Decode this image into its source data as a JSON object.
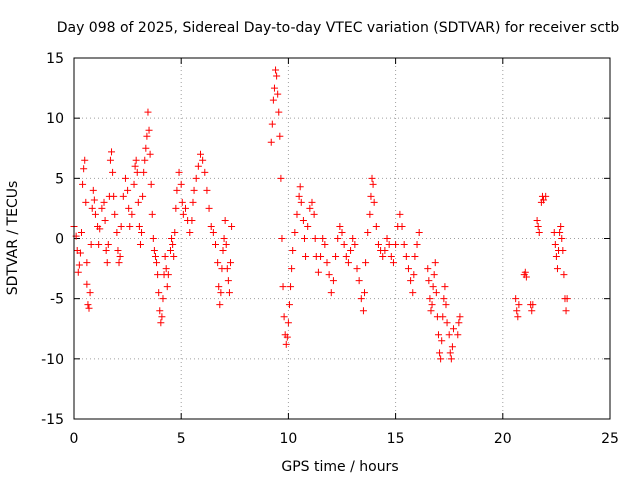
{
  "chart_data": {
    "type": "scatter",
    "title": "Day 098 of 2025, Sidereal Day-to-day VTEC variation (SDTVAR) for receiver sctb",
    "xlabel": "GPS time / hours",
    "ylabel": "SDTVAR / TECUs",
    "xlim": [
      0,
      25
    ],
    "ylim": [
      -15,
      15
    ],
    "x_ticks": [
      0,
      5,
      10,
      15,
      20,
      25
    ],
    "x_tick_labels": [
      "0",
      "5",
      "10",
      "15",
      "20",
      "25"
    ],
    "y_ticks": [
      -15,
      -10,
      -5,
      0,
      5,
      10,
      15
    ],
    "y_tick_labels": [
      "-15",
      "-10",
      "-5",
      "0",
      "5",
      "10",
      "15"
    ],
    "grid": true,
    "marker": "plus",
    "color": "#ff0000",
    "series": [
      {
        "name": "sctb",
        "points": [
          [
            0.0,
            1.0
          ],
          [
            0.1,
            0.2
          ],
          [
            0.15,
            -1.0
          ],
          [
            0.2,
            -2.8
          ],
          [
            0.25,
            -2.2
          ],
          [
            0.3,
            -1.2
          ],
          [
            0.35,
            0.5
          ],
          [
            0.4,
            4.5
          ],
          [
            0.45,
            5.8
          ],
          [
            0.5,
            6.5
          ],
          [
            0.55,
            3.0
          ],
          [
            0.6,
            -2.0
          ],
          [
            0.6,
            -3.8
          ],
          [
            0.65,
            -5.5
          ],
          [
            0.7,
            -5.8
          ],
          [
            0.75,
            -4.5
          ],
          [
            0.8,
            -0.5
          ],
          [
            0.85,
            2.5
          ],
          [
            0.9,
            4.0
          ],
          [
            0.95,
            3.2
          ],
          [
            1.0,
            2.0
          ],
          [
            1.1,
            1.0
          ],
          [
            1.15,
            -0.5
          ],
          [
            1.2,
            0.8
          ],
          [
            1.3,
            2.5
          ],
          [
            1.4,
            3.0
          ],
          [
            1.45,
            1.5
          ],
          [
            1.5,
            -1.0
          ],
          [
            1.55,
            -2.0
          ],
          [
            1.6,
            -0.5
          ],
          [
            1.65,
            3.5
          ],
          [
            1.7,
            6.5
          ],
          [
            1.75,
            7.2
          ],
          [
            1.8,
            5.5
          ],
          [
            1.85,
            3.5
          ],
          [
            1.9,
            2.0
          ],
          [
            2.0,
            0.5
          ],
          [
            2.05,
            -1.0
          ],
          [
            2.1,
            -2.0
          ],
          [
            2.15,
            -1.5
          ],
          [
            2.2,
            1.0
          ],
          [
            2.3,
            3.5
          ],
          [
            2.4,
            5.0
          ],
          [
            2.5,
            4.0
          ],
          [
            2.55,
            2.5
          ],
          [
            2.6,
            1.0
          ],
          [
            2.7,
            2.0
          ],
          [
            2.8,
            4.5
          ],
          [
            2.85,
            6.0
          ],
          [
            2.9,
            6.5
          ],
          [
            2.95,
            5.5
          ],
          [
            3.0,
            3.0
          ],
          [
            3.05,
            1.0
          ],
          [
            3.1,
            -0.5
          ],
          [
            3.15,
            0.5
          ],
          [
            3.2,
            3.5
          ],
          [
            3.25,
            5.5
          ],
          [
            3.3,
            6.5
          ],
          [
            3.35,
            7.5
          ],
          [
            3.4,
            8.5
          ],
          [
            3.45,
            10.5
          ],
          [
            3.5,
            9.0
          ],
          [
            3.55,
            7.0
          ],
          [
            3.6,
            4.5
          ],
          [
            3.65,
            2.0
          ],
          [
            3.7,
            0.0
          ],
          [
            3.75,
            -1.0
          ],
          [
            3.8,
            -1.5
          ],
          [
            3.85,
            -2.0
          ],
          [
            3.9,
            -3.0
          ],
          [
            3.95,
            -4.5
          ],
          [
            4.0,
            -6.0
          ],
          [
            4.05,
            -7.0
          ],
          [
            4.1,
            -6.5
          ],
          [
            4.15,
            -5.0
          ],
          [
            4.2,
            -3.0
          ],
          [
            4.25,
            -1.5
          ],
          [
            4.3,
            -2.5
          ],
          [
            4.35,
            -4.0
          ],
          [
            4.4,
            -3.0
          ],
          [
            4.5,
            -1.0
          ],
          [
            4.55,
            0.0
          ],
          [
            4.6,
            -0.5
          ],
          [
            4.65,
            -1.5
          ],
          [
            4.7,
            0.5
          ],
          [
            4.75,
            2.5
          ],
          [
            4.8,
            4.0
          ],
          [
            4.9,
            5.5
          ],
          [
            5.0,
            4.5
          ],
          [
            5.05,
            3.0
          ],
          [
            5.1,
            2.0
          ],
          [
            5.2,
            2.5
          ],
          [
            5.3,
            1.5
          ],
          [
            5.4,
            0.5
          ],
          [
            5.5,
            1.5
          ],
          [
            5.55,
            3.0
          ],
          [
            5.6,
            4.0
          ],
          [
            5.7,
            5.0
          ],
          [
            5.8,
            6.0
          ],
          [
            5.9,
            7.0
          ],
          [
            6.0,
            6.5
          ],
          [
            6.1,
            5.5
          ],
          [
            6.2,
            4.0
          ],
          [
            6.3,
            2.5
          ],
          [
            6.4,
            1.0
          ],
          [
            6.5,
            0.5
          ],
          [
            6.6,
            -0.5
          ],
          [
            6.7,
            -2.0
          ],
          [
            6.75,
            -4.0
          ],
          [
            6.8,
            -5.5
          ],
          [
            6.85,
            -4.5
          ],
          [
            6.9,
            -2.5
          ],
          [
            6.95,
            -1.0
          ],
          [
            7.0,
            0.0
          ],
          [
            7.05,
            1.5
          ],
          [
            7.1,
            -0.5
          ],
          [
            7.15,
            -2.5
          ],
          [
            7.2,
            -3.5
          ],
          [
            7.25,
            -4.5
          ],
          [
            7.3,
            -2.0
          ],
          [
            7.35,
            1.0
          ],
          [
            9.2,
            8.0
          ],
          [
            9.25,
            9.5
          ],
          [
            9.3,
            11.5
          ],
          [
            9.35,
            12.5
          ],
          [
            9.4,
            14.0
          ],
          [
            9.45,
            13.5
          ],
          [
            9.5,
            12.0
          ],
          [
            9.55,
            10.5
          ],
          [
            9.6,
            8.5
          ],
          [
            9.65,
            5.0
          ],
          [
            9.7,
            0.0
          ],
          [
            9.75,
            -4.0
          ],
          [
            9.8,
            -6.5
          ],
          [
            9.85,
            -8.0
          ],
          [
            9.9,
            -8.8
          ],
          [
            9.95,
            -8.2
          ],
          [
            10.0,
            -7.0
          ],
          [
            10.05,
            -5.5
          ],
          [
            10.1,
            -4.0
          ],
          [
            10.15,
            -2.5
          ],
          [
            10.2,
            -1.0
          ],
          [
            10.3,
            0.5
          ],
          [
            10.4,
            2.0
          ],
          [
            10.5,
            3.5
          ],
          [
            10.55,
            4.3
          ],
          [
            10.6,
            3.0
          ],
          [
            10.7,
            1.5
          ],
          [
            10.75,
            0.0
          ],
          [
            10.8,
            -1.5
          ],
          [
            10.9,
            1.0
          ],
          [
            11.0,
            2.5
          ],
          [
            11.1,
            3.0
          ],
          [
            11.2,
            2.0
          ],
          [
            11.25,
            0.0
          ],
          [
            11.3,
            -1.5
          ],
          [
            11.4,
            -2.8
          ],
          [
            11.5,
            -1.5
          ],
          [
            11.6,
            0.0
          ],
          [
            11.7,
            -0.5
          ],
          [
            11.8,
            -2.0
          ],
          [
            11.9,
            -3.0
          ],
          [
            12.0,
            -4.5
          ],
          [
            12.1,
            -3.5
          ],
          [
            12.2,
            -1.5
          ],
          [
            12.3,
            0.0
          ],
          [
            12.4,
            1.0
          ],
          [
            12.5,
            0.5
          ],
          [
            12.6,
            -0.5
          ],
          [
            12.7,
            -1.5
          ],
          [
            12.8,
            -2.0
          ],
          [
            12.9,
            -1.0
          ],
          [
            13.0,
            0.0
          ],
          [
            13.1,
            -0.5
          ],
          [
            13.2,
            -2.5
          ],
          [
            13.3,
            -3.5
          ],
          [
            13.4,
            -5.0
          ],
          [
            13.5,
            -6.0
          ],
          [
            13.55,
            -4.5
          ],
          [
            13.6,
            -2.0
          ],
          [
            13.7,
            0.5
          ],
          [
            13.8,
            2.0
          ],
          [
            13.85,
            3.5
          ],
          [
            13.9,
            5.0
          ],
          [
            13.95,
            4.5
          ],
          [
            14.0,
            3.0
          ],
          [
            14.1,
            1.0
          ],
          [
            14.2,
            -0.5
          ],
          [
            14.3,
            -1.0
          ],
          [
            14.4,
            -1.5
          ],
          [
            14.5,
            -1.0
          ],
          [
            14.6,
            0.0
          ],
          [
            14.7,
            -0.5
          ],
          [
            14.8,
            -1.5
          ],
          [
            14.9,
            -2.0
          ],
          [
            15.0,
            -0.5
          ],
          [
            15.1,
            1.0
          ],
          [
            15.2,
            2.0
          ],
          [
            15.3,
            1.0
          ],
          [
            15.4,
            -0.5
          ],
          [
            15.5,
            -1.5
          ],
          [
            15.6,
            -2.5
          ],
          [
            15.7,
            -3.5
          ],
          [
            15.8,
            -4.5
          ],
          [
            15.85,
            -3.0
          ],
          [
            15.9,
            -1.5
          ],
          [
            16.0,
            -0.5
          ],
          [
            16.1,
            0.5
          ],
          [
            16.5,
            -2.5
          ],
          [
            16.55,
            -3.5
          ],
          [
            16.6,
            -5.0
          ],
          [
            16.65,
            -6.0
          ],
          [
            16.7,
            -5.5
          ],
          [
            16.75,
            -4.0
          ],
          [
            16.8,
            -3.0
          ],
          [
            16.85,
            -2.0
          ],
          [
            16.9,
            -4.5
          ],
          [
            16.95,
            -6.5
          ],
          [
            17.0,
            -8.0
          ],
          [
            17.05,
            -9.5
          ],
          [
            17.1,
            -10.0
          ],
          [
            17.15,
            -8.5
          ],
          [
            17.2,
            -6.5
          ],
          [
            17.25,
            -5.0
          ],
          [
            17.3,
            -4.0
          ],
          [
            17.35,
            -5.5
          ],
          [
            17.4,
            -7.0
          ],
          [
            17.5,
            -8.0
          ],
          [
            17.55,
            -9.5
          ],
          [
            17.6,
            -10.0
          ],
          [
            17.65,
            -9.0
          ],
          [
            17.7,
            -7.5
          ],
          [
            17.9,
            -8.0
          ],
          [
            17.95,
            -7.0
          ],
          [
            18.0,
            -6.5
          ],
          [
            20.6,
            -5.0
          ],
          [
            20.65,
            -6.0
          ],
          [
            20.7,
            -6.5
          ],
          [
            20.75,
            -5.5
          ],
          [
            21.0,
            -3.0
          ],
          [
            21.05,
            -2.8
          ],
          [
            21.1,
            -3.2
          ],
          [
            21.3,
            -5.5
          ],
          [
            21.35,
            -6.0
          ],
          [
            21.4,
            -5.5
          ],
          [
            21.6,
            1.5
          ],
          [
            21.65,
            1.0
          ],
          [
            21.7,
            0.5
          ],
          [
            21.8,
            3.0
          ],
          [
            21.85,
            3.5
          ],
          [
            21.9,
            3.2
          ],
          [
            22.0,
            3.5
          ],
          [
            22.4,
            0.5
          ],
          [
            22.45,
            -0.5
          ],
          [
            22.5,
            -1.5
          ],
          [
            22.55,
            -2.5
          ],
          [
            22.6,
            -1.0
          ],
          [
            22.65,
            0.5
          ],
          [
            22.7,
            1.0
          ],
          [
            22.75,
            0.0
          ],
          [
            22.8,
            -1.0
          ],
          [
            22.85,
            -3.0
          ],
          [
            22.9,
            -5.0
          ],
          [
            22.95,
            -6.0
          ],
          [
            23.0,
            -5.0
          ]
        ]
      }
    ]
  }
}
